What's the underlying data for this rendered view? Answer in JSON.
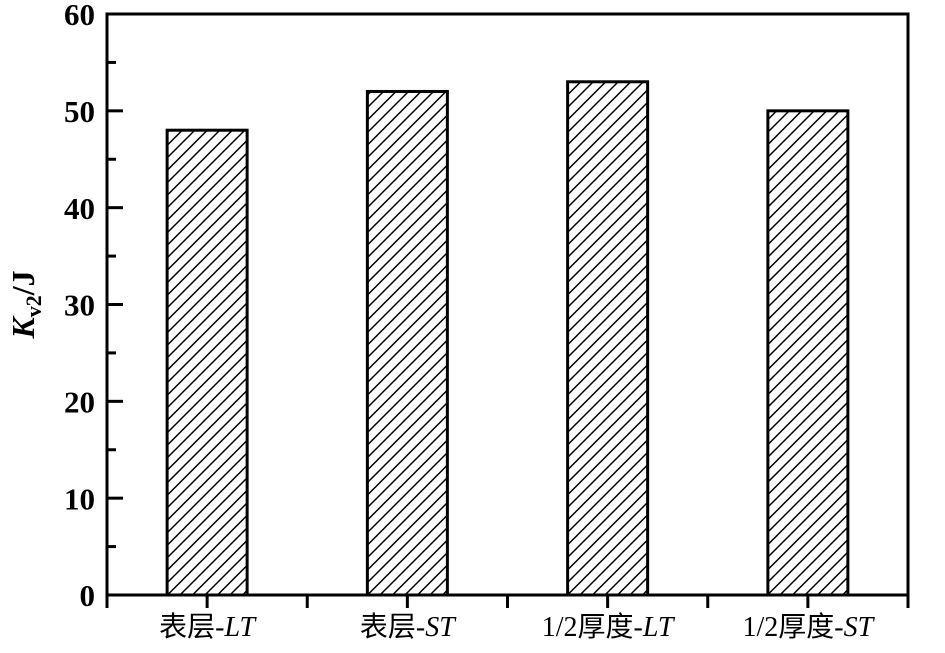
{
  "figure": {
    "background": "#ffffff",
    "ink_color": "#000000"
  },
  "chart_data": {
    "type": "bar",
    "title": "",
    "xlabel": "",
    "ylabel": {
      "text": "Kv2/J",
      "main": "K",
      "subscript": "v2",
      "rest": "/J"
    },
    "categories": [
      {
        "label": "表层-LT",
        "prefix": "表层-",
        "italic": "LT"
      },
      {
        "label": "表层-ST",
        "prefix": "表层-",
        "italic": "ST"
      },
      {
        "label": "1/2厚度-LT",
        "prefix": "1/2厚度-",
        "italic": "LT"
      },
      {
        "label": "1/2厚度-ST",
        "prefix": "1/2厚度-",
        "italic": "ST"
      }
    ],
    "values": [
      48,
      52,
      53,
      50
    ],
    "ylim": [
      0,
      60
    ],
    "y_major_ticks": [
      0,
      10,
      20,
      30,
      40,
      50,
      60
    ],
    "y_minor_step": 5,
    "grid": false,
    "legend": null,
    "bar_style": {
      "fill_color": "#ffffff",
      "hatch": "diagonal-forward",
      "stroke_color": "#000000"
    }
  }
}
